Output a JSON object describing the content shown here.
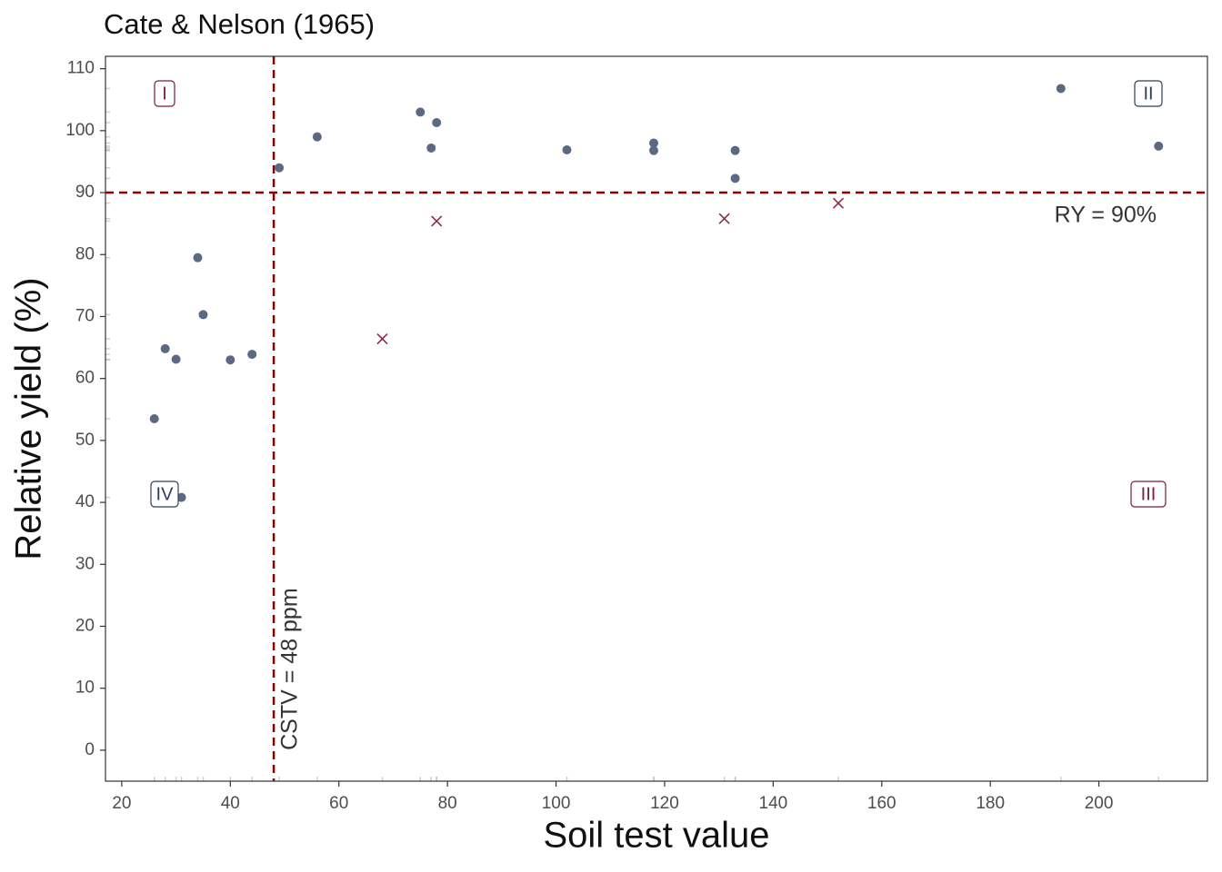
{
  "chart_data": {
    "type": "scatter",
    "title": "Cate & Nelson (1965)",
    "x_label": "Soil test value",
    "y_label": "Relative yield (%)",
    "xlim": [
      17,
      220
    ],
    "ylim": [
      -5,
      112
    ],
    "xticks": [
      20,
      40,
      60,
      80,
      100,
      120,
      140,
      160,
      180,
      200
    ],
    "yticks": [
      0,
      10,
      20,
      30,
      40,
      50,
      60,
      70,
      80,
      90,
      100,
      110
    ],
    "rug": true,
    "series": [
      {
        "color": "#5b6a82",
        "marker": "circle",
        "x": [
          26,
          28,
          30,
          31,
          34,
          35,
          40,
          44,
          49,
          56,
          75,
          77,
          78,
          102,
          118,
          118,
          133,
          133,
          193,
          211
        ],
        "values": [
          53.5,
          64.8,
          63.1,
          40.8,
          79.5,
          70.3,
          63,
          63.9,
          94,
          99,
          103,
          97.2,
          101.3,
          96.9,
          98,
          96.8,
          96.8,
          92.3,
          106.8,
          97.5
        ]
      },
      {
        "color": "#8e2a4c",
        "marker": "x",
        "x": [
          68,
          78,
          131,
          152
        ],
        "values": [
          66.4,
          85.4,
          85.8,
          88.3
        ]
      }
    ],
    "reference_lines": [
      {
        "axis": "x",
        "value": 48,
        "label": "CSTV = 48 ppm"
      },
      {
        "axis": "y",
        "value": 90,
        "label": "RY = 90%"
      }
    ],
    "reference_color": "#8b0000",
    "quadrant_labels": [
      {
        "text": "I",
        "color": "#7a1c3a"
      },
      {
        "text": "II",
        "color": "#2e3e56"
      },
      {
        "text": "III",
        "color": "#7a1c3a"
      },
      {
        "text": "IV",
        "color": "#2e3e56"
      }
    ]
  }
}
